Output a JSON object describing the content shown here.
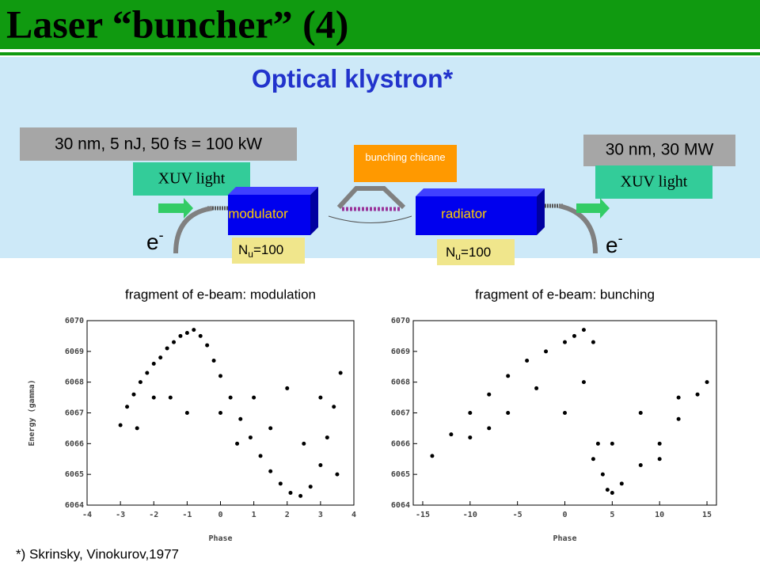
{
  "header": {
    "title": "Laser “buncher”  (4)"
  },
  "diagram": {
    "subtitle": "Optical klystron*",
    "input_label": "30 nm, 5 nJ, 50 fs = 100 kW",
    "output_label": "30 nm, 30 MW",
    "input_light": "XUV light",
    "output_light": "XUV light",
    "chicane": "bunching chicane",
    "modulator": "modulator",
    "radiator": "radiator",
    "electron": {
      "symbol": "e",
      "superscript": "-"
    },
    "undulator_periods": {
      "symbol": "N",
      "subscript": "u",
      "value_text": "=100"
    }
  },
  "chart_data": [
    {
      "type": "scatter",
      "title": "fragment of e-beam: modulation",
      "x_label": "Phase",
      "y_label": "Energy (gamma)",
      "color": "#000000",
      "x": [
        -3,
        -2.8,
        -2.6,
        -2.4,
        -2.2,
        -2,
        -1.8,
        -1.6,
        -1.4,
        -1.2,
        -1,
        -0.8,
        -0.6,
        -0.4,
        -0.2,
        0,
        0.3,
        0.6,
        0.9,
        1.2,
        1.5,
        1.8,
        2.1,
        2.4,
        2.7,
        3,
        3.2,
        3.4,
        3.6,
        -2.5,
        -1.5,
        -1,
        0,
        1,
        2,
        3,
        2.5,
        1.5,
        -2,
        0.5,
        3.5
      ],
      "y": [
        6066.6,
        6067.2,
        6067.6,
        6068.0,
        6068.3,
        6068.6,
        6068.8,
        6069.1,
        6069.3,
        6069.5,
        6069.6,
        6069.7,
        6069.5,
        6069.2,
        6068.7,
        6068.2,
        6067.5,
        6066.8,
        6066.2,
        6065.6,
        6065.1,
        6064.7,
        6064.4,
        6064.3,
        6064.6,
        6065.3,
        6066.2,
        6067.2,
        6068.3,
        6066.5,
        6067.5,
        6067,
        6067,
        6067.5,
        6067.8,
        6067.5,
        6066,
        6066.5,
        6067.5,
        6066,
        6065
      ],
      "xlim": [
        -4,
        4
      ],
      "ylim": [
        6064,
        6070
      ],
      "xticks": [
        -4,
        -3,
        -2,
        -1,
        0,
        1,
        2,
        3,
        4
      ],
      "yticks": [
        6064,
        6065,
        6066,
        6067,
        6068,
        6069,
        6070
      ]
    },
    {
      "type": "scatter",
      "title": "fragment of e-beam: bunching",
      "x_label": "Phase",
      "color": "#000000",
      "x": [
        -14,
        -12,
        -10,
        -8,
        -6,
        -4,
        -2,
        0,
        1,
        2,
        3,
        3.5,
        4,
        4.5,
        5,
        6,
        8,
        10,
        12,
        14,
        15,
        -10,
        -6,
        -3,
        0,
        2,
        5,
        8,
        12,
        10,
        -8,
        3
      ],
      "y": [
        6065.6,
        6066.3,
        6067,
        6067.6,
        6068.2,
        6068.7,
        6069,
        6069.3,
        6069.5,
        6069.7,
        6069.3,
        6066,
        6065,
        6064.5,
        6064.4,
        6064.7,
        6065.3,
        6066,
        6066.8,
        6067.6,
        6068,
        6066.2,
        6067,
        6067.8,
        6067,
        6068,
        6066,
        6067,
        6067.5,
        6065.5,
        6066.5,
        6065.5
      ],
      "xlim": [
        -16,
        16
      ],
      "ylim": [
        6064,
        6070
      ],
      "xticks": [
        -15,
        -10,
        -5,
        0,
        5,
        10,
        15
      ],
      "yticks": [
        6064,
        6065,
        6066,
        6067,
        6068,
        6069,
        6070
      ]
    }
  ],
  "footnote": "*) Skrinsky, Vinokurov,1977"
}
